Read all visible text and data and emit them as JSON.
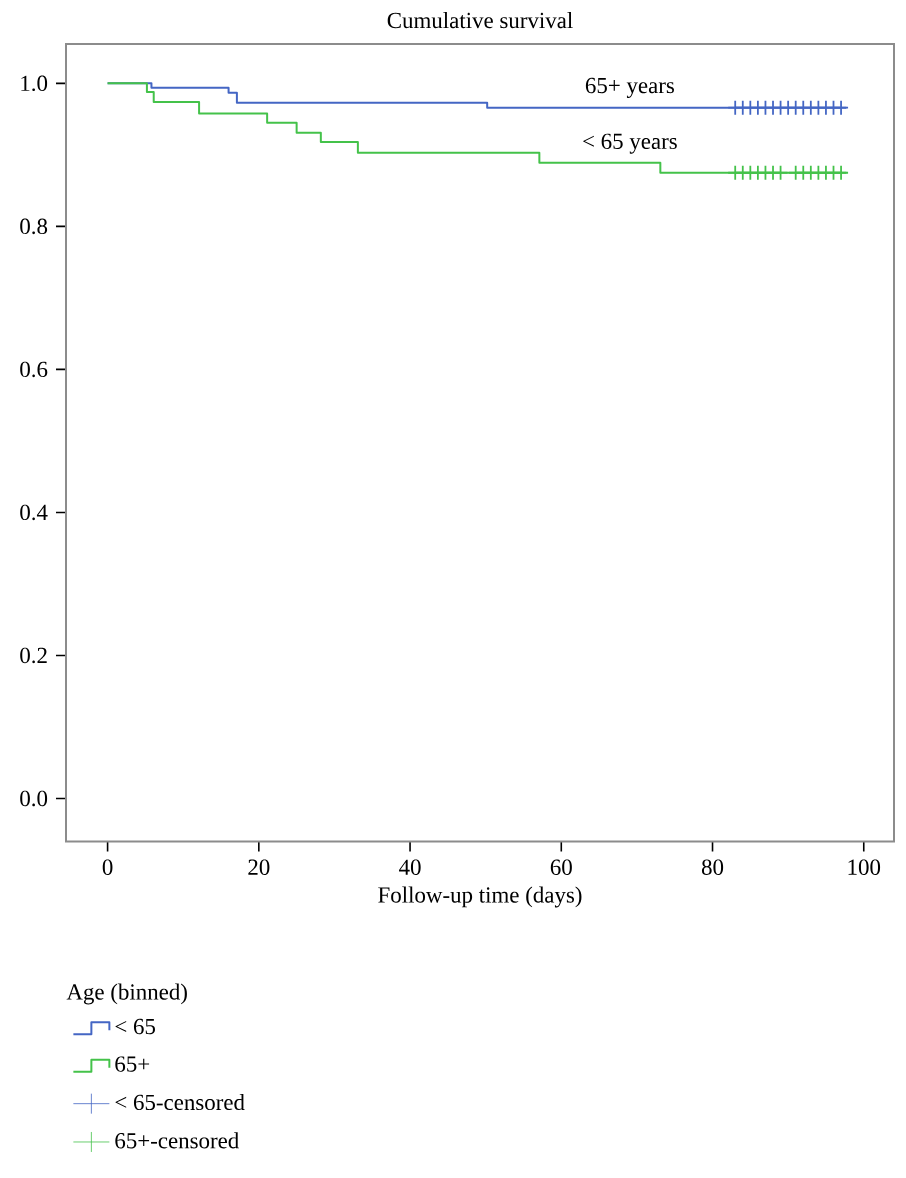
{
  "chart_data": {
    "type": "step",
    "title": "Cumulative survival",
    "xlabel": "Follow-up time (days)",
    "legend_title": "Age (binned)",
    "legend": "bottom left",
    "grid": false,
    "xlim": [
      -5.5,
      104
    ],
    "xticks": [
      0,
      20,
      40,
      60,
      80,
      100
    ],
    "ylim": [
      -0.06,
      1.055
    ],
    "yticks": [
      {
        "value": 0,
        "label": "0.0"
      },
      {
        "value": 0.2,
        "label": "0.2"
      },
      {
        "value": 0.4,
        "label": "0.4"
      },
      {
        "value": 0.6,
        "label": "0.6"
      },
      {
        "value": 0.8,
        "label": "0.8"
      },
      {
        "value": 1,
        "label": "1.0"
      }
    ],
    "series": [
      {
        "name": "< 65",
        "color": "#4466c4",
        "x": [
          0,
          5.8,
          16,
          17.1,
          50.2,
          97.7
        ],
        "values": [
          1.0,
          0.994,
          0.987,
          0.973,
          0.966,
          0.966
        ]
      },
      {
        "name": "65+",
        "color": "#44c24a",
        "x": [
          0,
          5.2,
          6.1,
          12.1,
          21.1,
          25,
          28.2,
          33.1,
          57.1,
          73.1,
          97.7
        ],
        "values": [
          1.0,
          0.988,
          0.974,
          0.958,
          0.945,
          0.931,
          0.918,
          0.903,
          0.889,
          0.875,
          0.875
        ]
      },
      {
        "name": "< 65-censored",
        "type": "scatter",
        "marker": "cross",
        "color": "#4466c4",
        "x": [
          83,
          84,
          85,
          86,
          87,
          88,
          89,
          90,
          91,
          92,
          93,
          94,
          95,
          96,
          97
        ],
        "values": [
          0.966,
          0.966,
          0.966,
          0.966,
          0.966,
          0.966,
          0.966,
          0.966,
          0.966,
          0.966,
          0.966,
          0.966,
          0.966,
          0.966,
          0.966
        ]
      },
      {
        "name": "65+-censored",
        "type": "scatter",
        "marker": "cross",
        "color": "#44c24a",
        "x": [
          83,
          84,
          85,
          86,
          87,
          88,
          89,
          91,
          92,
          93,
          94,
          95,
          96,
          97
        ],
        "values": [
          0.875,
          0.875,
          0.875,
          0.875,
          0.875,
          0.875,
          0.875,
          0.875,
          0.875,
          0.875,
          0.875,
          0.875,
          0.875,
          0.875
        ]
      }
    ],
    "annotations": [
      "65+ years",
      "< 65 years"
    ]
  }
}
